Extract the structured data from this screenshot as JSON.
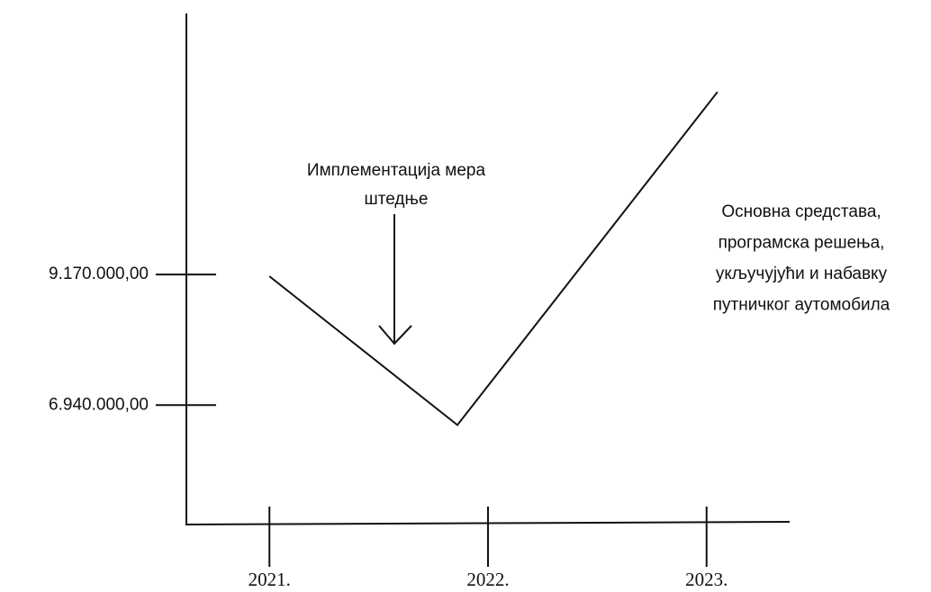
{
  "chart_data": {
    "type": "line",
    "x": [
      2021,
      2021.86,
      2023.05
    ],
    "series": [
      {
        "name": null,
        "color": "#111111",
        "values": [
          9140000,
          6600000,
          12290000
        ]
      }
    ],
    "xlim": [
      2020.62,
      2023.38
    ],
    "xticks": [
      {
        "value": 2021,
        "label": "2021."
      },
      {
        "value": 2022,
        "label": "2022."
      },
      {
        "value": 2023,
        "label": "2023."
      }
    ],
    "ylim": [
      4900000,
      13630000
    ],
    "yticks": [
      {
        "value": 6940000,
        "label": "6.940.000,00"
      },
      {
        "value": 9170000,
        "label": "9.170.000,00"
      }
    ],
    "annotations": [
      {
        "lines": [
          "Имплементација мера",
          "штедње"
        ]
      },
      {
        "lines": [
          "Основна средстава,",
          "програмска решења,",
          "укључујући и набавку",
          "путничког аутомобила"
        ]
      }
    ]
  }
}
